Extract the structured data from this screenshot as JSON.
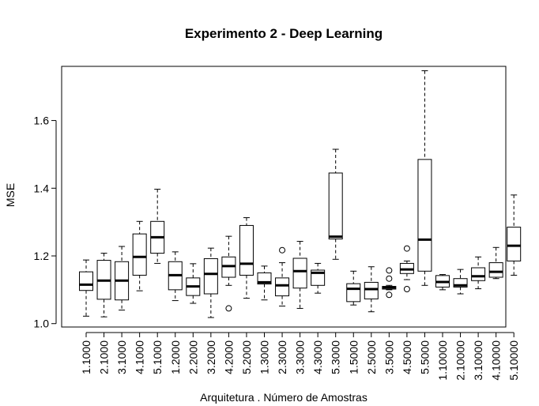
{
  "chart_data": {
    "type": "boxplot",
    "title": "Experimento 2 - Deep Learning",
    "xlabel": "Arquitetura . Número de Amostras",
    "ylabel": "MSE",
    "ylim": [
      0.99,
      1.76
    ],
    "yticks": [
      "1.0",
      "1.2",
      "1.4",
      "1.6"
    ],
    "grid": false,
    "categories": [
      "1.1000",
      "2.1000",
      "3.1000",
      "4.1000",
      "5.1000",
      "1.2000",
      "2.2000",
      "3.2000",
      "4.2000",
      "5.2000",
      "1.3000",
      "2.3000",
      "3.3000",
      "4.3000",
      "5.3000",
      "1.5000",
      "2.5000",
      "3.5000",
      "4.5000",
      "5.5000",
      "1.10000",
      "2.10000",
      "3.10000",
      "4.10000",
      "5.10000"
    ],
    "boxes": [
      {
        "min": 1.022,
        "q1": 1.098,
        "median": 1.115,
        "q3": 1.153,
        "max": 1.188,
        "outliers": []
      },
      {
        "min": 1.02,
        "q1": 1.072,
        "median": 1.127,
        "q3": 1.187,
        "max": 1.208,
        "outliers": []
      },
      {
        "min": 1.04,
        "q1": 1.07,
        "median": 1.127,
        "q3": 1.183,
        "max": 1.228,
        "outliers": []
      },
      {
        "min": 1.097,
        "q1": 1.143,
        "median": 1.197,
        "q3": 1.265,
        "max": 1.302,
        "outliers": []
      },
      {
        "min": 1.178,
        "q1": 1.208,
        "median": 1.255,
        "q3": 1.302,
        "max": 1.397,
        "outliers": []
      },
      {
        "min": 1.068,
        "q1": 1.1,
        "median": 1.143,
        "q3": 1.183,
        "max": 1.212,
        "outliers": []
      },
      {
        "min": 1.06,
        "q1": 1.083,
        "median": 1.11,
        "q3": 1.135,
        "max": 1.177,
        "outliers": []
      },
      {
        "min": 1.018,
        "q1": 1.088,
        "median": 1.147,
        "q3": 1.192,
        "max": 1.223,
        "outliers": []
      },
      {
        "min": 1.113,
        "q1": 1.137,
        "median": 1.17,
        "q3": 1.197,
        "max": 1.258,
        "outliers": [
          1.045
        ]
      },
      {
        "min": 1.075,
        "q1": 1.143,
        "median": 1.177,
        "q3": 1.29,
        "max": 1.313,
        "outliers": []
      },
      {
        "min": 1.07,
        "q1": 1.117,
        "median": 1.122,
        "q3": 1.15,
        "max": 1.17,
        "outliers": []
      },
      {
        "min": 1.052,
        "q1": 1.082,
        "median": 1.113,
        "q3": 1.135,
        "max": 1.18,
        "outliers": [
          1.217
        ]
      },
      {
        "min": 1.045,
        "q1": 1.105,
        "median": 1.155,
        "q3": 1.193,
        "max": 1.243,
        "outliers": []
      },
      {
        "min": 1.09,
        "q1": 1.113,
        "median": 1.15,
        "q3": 1.158,
        "max": 1.178,
        "outliers": []
      },
      {
        "min": 1.19,
        "q1": 1.25,
        "median": 1.257,
        "q3": 1.445,
        "max": 1.515,
        "outliers": []
      },
      {
        "min": 1.055,
        "q1": 1.065,
        "median": 1.103,
        "q3": 1.118,
        "max": 1.155,
        "outliers": []
      },
      {
        "min": 1.035,
        "q1": 1.073,
        "median": 1.102,
        "q3": 1.122,
        "max": 1.168,
        "outliers": []
      },
      {
        "min": 1.1,
        "q1": 1.102,
        "median": 1.107,
        "q3": 1.11,
        "max": 1.113,
        "outliers": [
          1.157,
          1.133,
          1.085
        ]
      },
      {
        "min": 1.13,
        "q1": 1.148,
        "median": 1.16,
        "q3": 1.178,
        "max": 1.185,
        "outliers": [
          1.222,
          1.102
        ]
      },
      {
        "min": 1.113,
        "q1": 1.155,
        "median": 1.248,
        "q3": 1.485,
        "max": 1.747,
        "outliers": []
      },
      {
        "min": 1.1,
        "q1": 1.108,
        "median": 1.123,
        "q3": 1.142,
        "max": 1.145,
        "outliers": []
      },
      {
        "min": 1.088,
        "q1": 1.108,
        "median": 1.113,
        "q3": 1.133,
        "max": 1.16,
        "outliers": []
      },
      {
        "min": 1.103,
        "q1": 1.127,
        "median": 1.14,
        "q3": 1.165,
        "max": 1.197,
        "outliers": []
      },
      {
        "min": 1.133,
        "q1": 1.137,
        "median": 1.153,
        "q3": 1.18,
        "max": 1.225,
        "outliers": []
      },
      {
        "min": 1.143,
        "q1": 1.185,
        "median": 1.23,
        "q3": 1.285,
        "max": 1.38,
        "outliers": []
      }
    ]
  }
}
